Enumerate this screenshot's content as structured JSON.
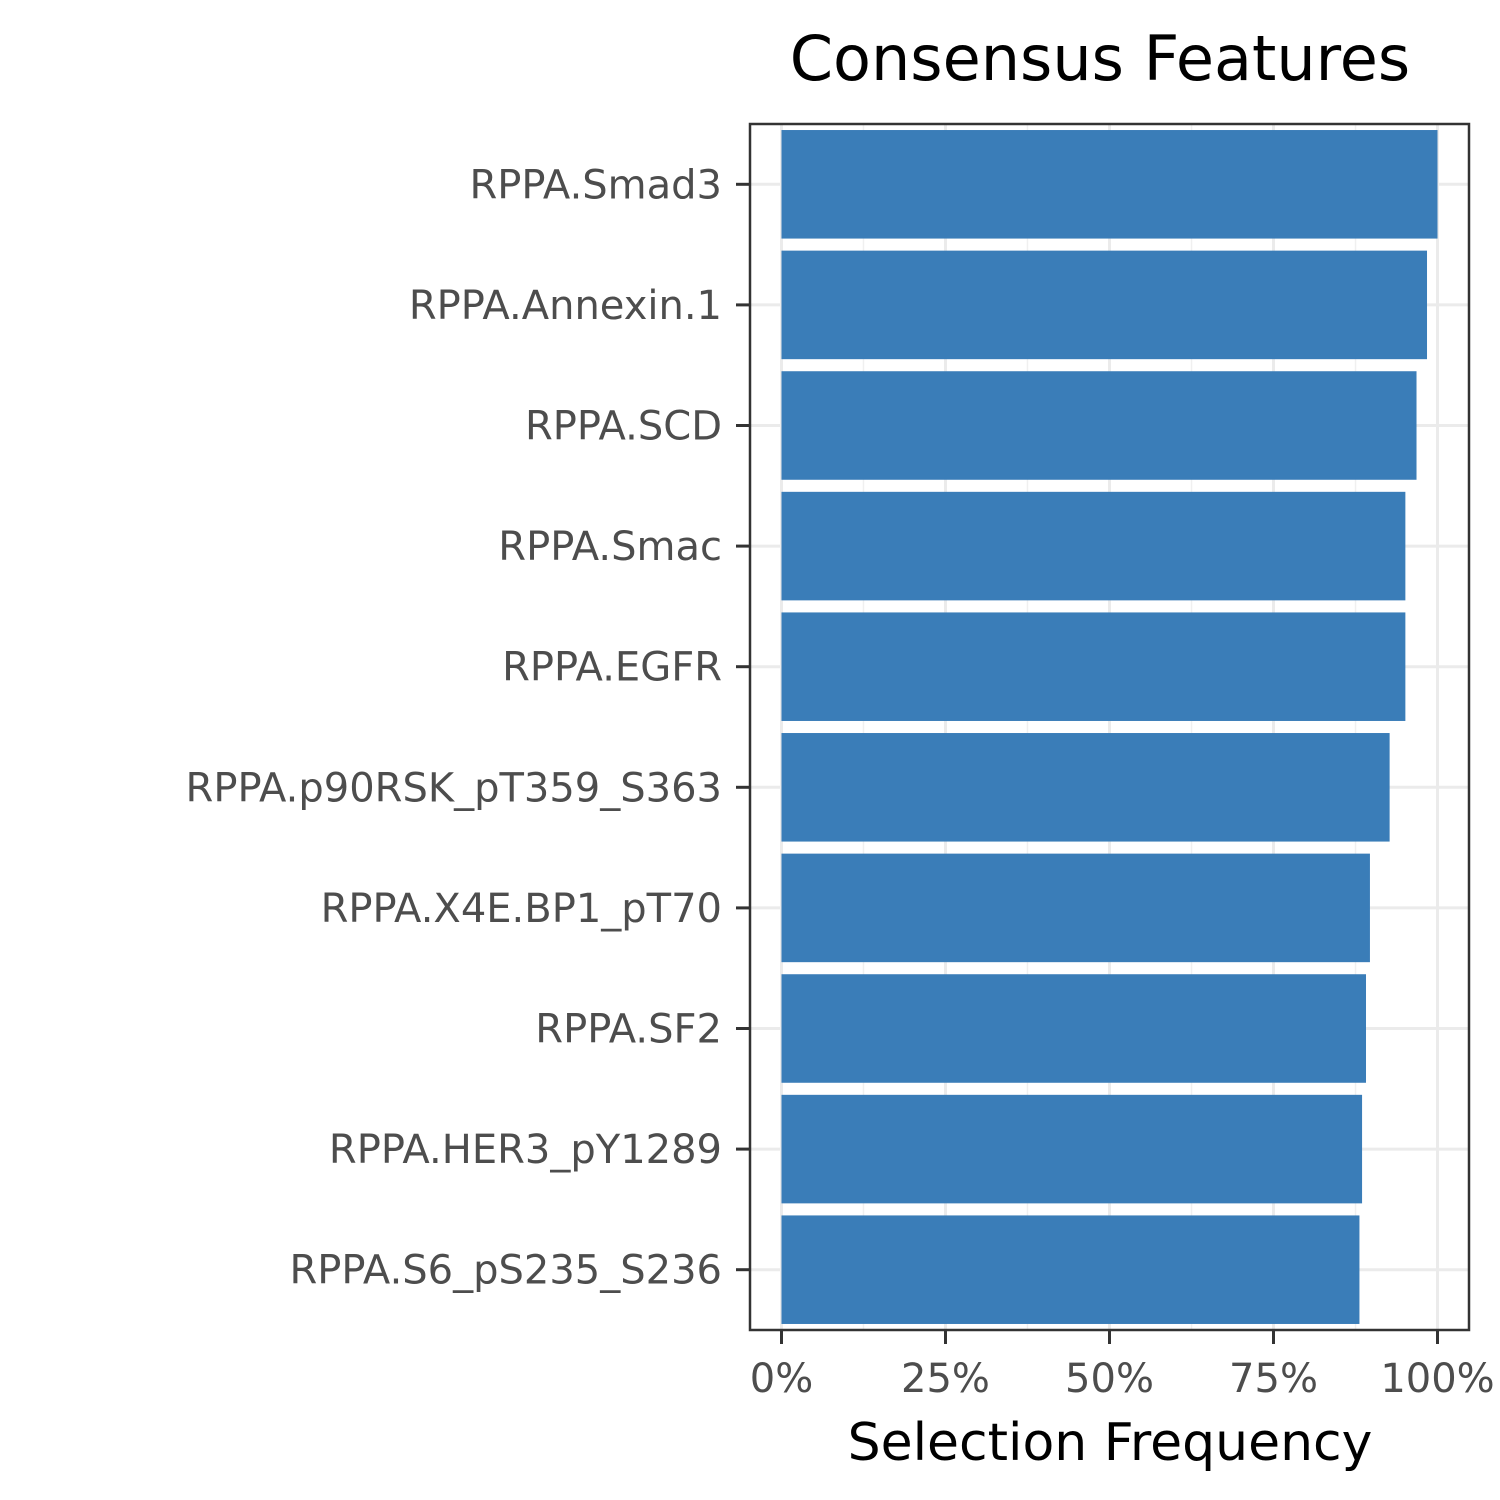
{
  "chart_data": {
    "type": "bar",
    "orientation": "horizontal",
    "title": "Consensus Features",
    "xlabel": "Selection Frequency",
    "ylabel": "",
    "categories": [
      "RPPA.Smad3",
      "RPPA.Annexin.1",
      "RPPA.SCD",
      "RPPA.Smac",
      "RPPA.EGFR",
      "RPPA.p90RSK_pT359_S363",
      "RPPA.X4E.BP1_pT70",
      "RPPA.SF2",
      "RPPA.HER3_pY1289",
      "RPPA.S6_pS235_S236"
    ],
    "values": [
      1.0,
      0.984,
      0.968,
      0.951,
      0.951,
      0.927,
      0.897,
      0.891,
      0.885,
      0.881
    ],
    "xlim": [
      -0.048,
      1.048
    ],
    "xticks": [
      0,
      0.25,
      0.5,
      0.75,
      1.0
    ],
    "xtick_labels": [
      "0%",
      "25%",
      "50%",
      "75%",
      "100%"
    ],
    "bar_color": "#3a7db8",
    "grid": true
  }
}
